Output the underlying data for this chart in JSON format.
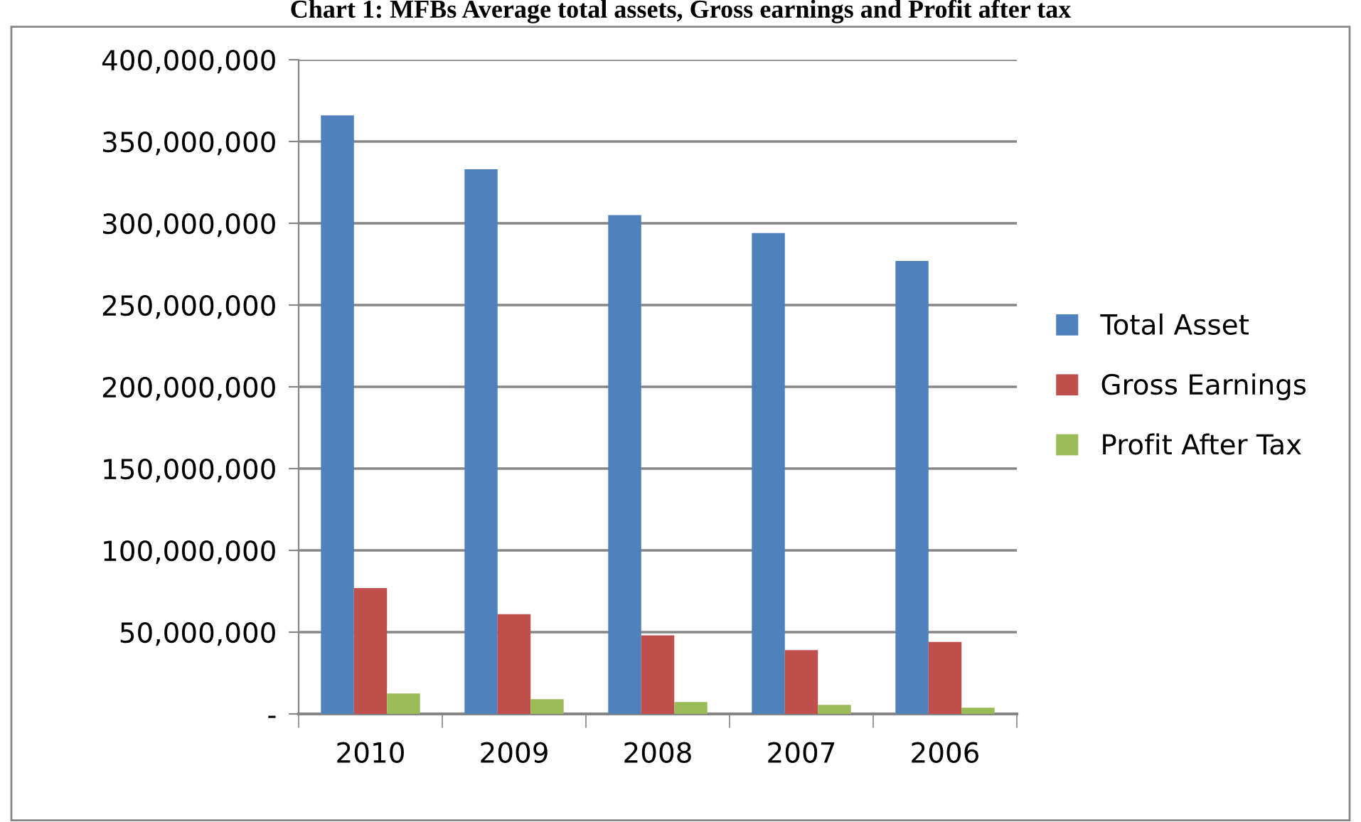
{
  "chart_data": {
    "type": "bar",
    "title": "Chart 1: MFBs Average total assets, Gross earnings and Profit after tax",
    "categories": [
      "2010",
      "2009",
      "2008",
      "2007",
      "2006"
    ],
    "series": [
      {
        "name": "Total Asset",
        "color": "#4f81bd",
        "values": [
          366000000,
          333000000,
          305000000,
          294000000,
          277000000
        ]
      },
      {
        "name": "Gross Earnings",
        "color": "#c0504d",
        "values": [
          77000000,
          61000000,
          48000000,
          39000000,
          44000000
        ]
      },
      {
        "name": "Profit After Tax",
        "color": "#9bbb59",
        "values": [
          12500000,
          9000000,
          7300000,
          5500000,
          3800000
        ]
      }
    ],
    "ylim": [
      0,
      400000000
    ],
    "yticks": [
      {
        "value": 0,
        "label": "-"
      },
      {
        "value": 50000000,
        "label": "50,000,000"
      },
      {
        "value": 100000000,
        "label": "100,000,000"
      },
      {
        "value": 150000000,
        "label": "150,000,000"
      },
      {
        "value": 200000000,
        "label": "200,000,000"
      },
      {
        "value": 250000000,
        "label": "250,000,000"
      },
      {
        "value": 300000000,
        "label": "300,000,000"
      },
      {
        "value": 350000000,
        "label": "350,000,000"
      },
      {
        "value": 400000000,
        "label": "400,000,000"
      }
    ],
    "grid": "y",
    "legend": "right"
  }
}
